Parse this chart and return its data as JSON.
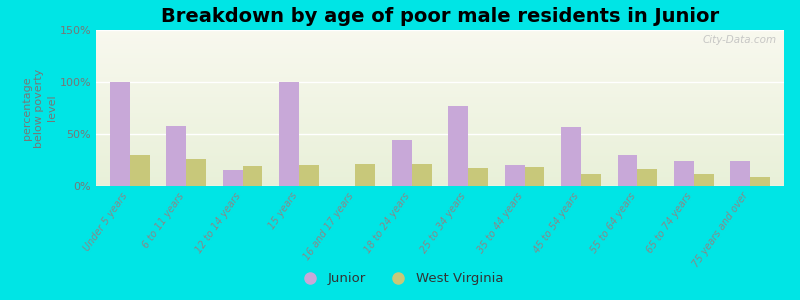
{
  "title": "Breakdown by age of poor male residents in Junior",
  "ylabel": "percentage\nbelow poverty\nlevel",
  "categories": [
    "Under 5 years",
    "6 to 11 years",
    "12 to 14 years",
    "15 years",
    "16 and 17 years",
    "18 to 24 years",
    "25 to 34 years",
    "35 to 44 years",
    "45 to 54 years",
    "55 to 64 years",
    "65 to 74 years",
    "75 years and over"
  ],
  "junior_values": [
    100,
    58,
    15,
    100,
    0,
    44,
    77,
    20,
    57,
    30,
    24,
    24
  ],
  "wv_values": [
    30,
    26,
    19,
    20,
    21,
    21,
    17,
    18,
    12,
    16,
    12,
    9
  ],
  "junior_color": "#c8a8d8",
  "wv_color": "#c8c87a",
  "ylim": [
    0,
    150
  ],
  "yticks": [
    0,
    50,
    100,
    150
  ],
  "ytick_labels": [
    "0%",
    "50%",
    "100%",
    "150%"
  ],
  "bg_color": "#00e5e5",
  "title_fontsize": 14,
  "legend_labels": [
    "Junior",
    "West Virginia"
  ],
  "watermark": "City-Data.com"
}
